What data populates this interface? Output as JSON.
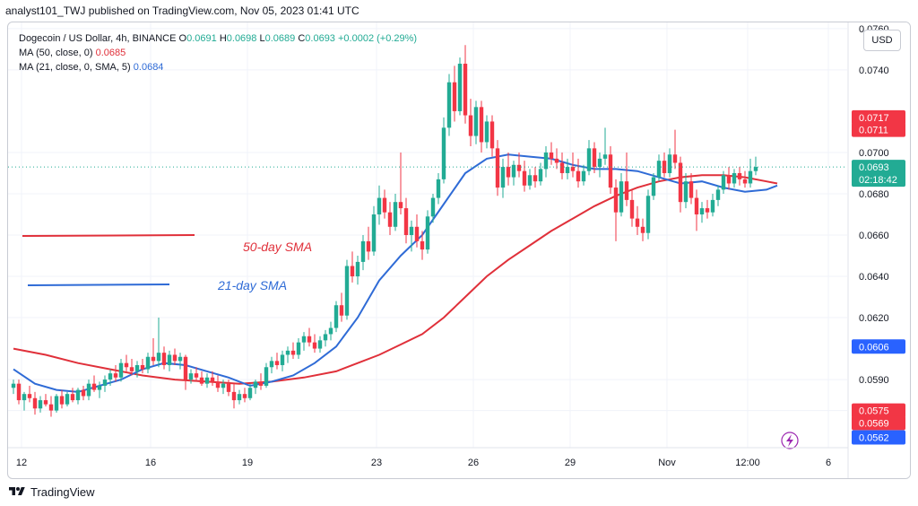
{
  "header": {
    "text": "analyst101_TWJ published on TradingView.com, Nov 05, 2023 01:41 UTC"
  },
  "legend": {
    "symbol": "Dogecoin / US Dollar, 4h, BINANCE",
    "o_label": "O",
    "o_value": "0.0691",
    "h_label": "H",
    "h_value": "0.0698",
    "l_label": "L",
    "l_value": "0.0689",
    "c_label": "C",
    "c_value": "0.0693",
    "change": "+0.0002 (+0.29%)",
    "ma50_label": "MA (50, close, 0)",
    "ma50_value": "0.0685",
    "ma21_label": "MA (21, close, 0, SMA, 5)",
    "ma21_value": "0.0684"
  },
  "currency_button": "USD",
  "footer": {
    "brand": "TradingView"
  },
  "colors": {
    "up": "#22ab94",
    "down": "#f23645",
    "ma50": "#e0303a",
    "ma21": "#2f6bd6",
    "price_line": "#22ab94"
  },
  "chart_data": {
    "type": "candlestick",
    "title": "Dogecoin / US Dollar, 4h, BINANCE",
    "ylim": [
      0.0557,
      0.0763
    ],
    "y_ticks": [
      {
        "v": 0.076,
        "t": "0.0760"
      },
      {
        "v": 0.074,
        "t": "0.0740"
      },
      {
        "v": 0.07,
        "t": "0.0700"
      },
      {
        "v": 0.068,
        "t": "0.0680"
      },
      {
        "v": 0.066,
        "t": "0.0660"
      },
      {
        "v": 0.064,
        "t": "0.0640"
      },
      {
        "v": 0.062,
        "t": "0.0620"
      },
      {
        "v": 0.059,
        "t": "0.0590"
      },
      {
        "v": 0.0575,
        "t": "0.0575"
      }
    ],
    "x_ticks": [
      {
        "i": 1.5,
        "t": "12"
      },
      {
        "i": 25.5,
        "t": "16"
      },
      {
        "i": 43.5,
        "t": "19"
      },
      {
        "i": 67.5,
        "t": "23"
      },
      {
        "i": 85.5,
        "t": "26"
      },
      {
        "i": 103.5,
        "t": "29"
      },
      {
        "i": 121.5,
        "t": "Nov"
      },
      {
        "i": 136.5,
        "t": "12:00"
      },
      {
        "i": 151.5,
        "t": "6"
      }
    ],
    "price_labels": [
      {
        "v": 0.0717,
        "t": "0.0717",
        "color": "#f23645"
      },
      {
        "v": 0.0711,
        "t": "0.0711",
        "color": "#f23645"
      },
      {
        "v": 0.0606,
        "t": "0.0606",
        "color": "#2962ff"
      },
      {
        "v": 0.0575,
        "t": "0.0575",
        "color": "#f23645"
      },
      {
        "v": 0.0569,
        "t": "0.0569",
        "color": "#f23645"
      },
      {
        "v": 0.0562,
        "t": "0.0562",
        "color": "#2962ff"
      }
    ],
    "current_price": {
      "v": 0.0693,
      "t": "0.0693",
      "countdown": "02:18:42"
    },
    "annotations": [
      {
        "text": "50-day SMA",
        "color": "#e0303a"
      },
      {
        "text": "21-day SMA",
        "color": "#2f6bd6"
      }
    ],
    "ohlc": [
      [
        0.0586,
        0.059,
        0.0583,
        0.0588
      ],
      [
        0.0588,
        0.059,
        0.0578,
        0.058
      ],
      [
        0.058,
        0.0584,
        0.0575,
        0.0583
      ],
      [
        0.0583,
        0.0587,
        0.0579,
        0.0581
      ],
      [
        0.0581,
        0.0584,
        0.0573,
        0.0576
      ],
      [
        0.0576,
        0.0582,
        0.0574,
        0.058
      ],
      [
        0.058,
        0.0583,
        0.0577,
        0.0578
      ],
      [
        0.0578,
        0.0582,
        0.0572,
        0.0575
      ],
      [
        0.0575,
        0.0583,
        0.0574,
        0.0582
      ],
      [
        0.0582,
        0.0585,
        0.0576,
        0.0578
      ],
      [
        0.0578,
        0.0584,
        0.0577,
        0.0583
      ],
      [
        0.0583,
        0.0586,
        0.0579,
        0.058
      ],
      [
        0.058,
        0.0586,
        0.0578,
        0.0585
      ],
      [
        0.0585,
        0.0587,
        0.058,
        0.0582
      ],
      [
        0.0582,
        0.059,
        0.058,
        0.0588
      ],
      [
        0.0588,
        0.0592,
        0.0584,
        0.0585
      ],
      [
        0.0585,
        0.0589,
        0.0581,
        0.0587
      ],
      [
        0.0587,
        0.0592,
        0.0584,
        0.059
      ],
      [
        0.059,
        0.0595,
        0.0587,
        0.0593
      ],
      [
        0.0593,
        0.0597,
        0.0589,
        0.0591
      ],
      [
        0.0591,
        0.06,
        0.0589,
        0.0598
      ],
      [
        0.0598,
        0.0602,
        0.0594,
        0.0596
      ],
      [
        0.0596,
        0.06,
        0.0592,
        0.0594
      ],
      [
        0.0594,
        0.0599,
        0.0591,
        0.0597
      ],
      [
        0.0597,
        0.06,
        0.0593,
        0.0595
      ],
      [
        0.0595,
        0.0603,
        0.0593,
        0.0601
      ],
      [
        0.0601,
        0.061,
        0.0597,
        0.0599
      ],
      [
        0.0599,
        0.062,
        0.0596,
        0.0603
      ],
      [
        0.0603,
        0.0606,
        0.0595,
        0.0597
      ],
      [
        0.0597,
        0.0604,
        0.0594,
        0.0602
      ],
      [
        0.0602,
        0.0605,
        0.0597,
        0.0599
      ],
      [
        0.0599,
        0.0603,
        0.0595,
        0.0601
      ],
      [
        0.0601,
        0.0602,
        0.0585,
        0.059
      ],
      [
        0.059,
        0.0595,
        0.0588,
        0.0593
      ],
      [
        0.0593,
        0.0596,
        0.0589,
        0.0591
      ],
      [
        0.0591,
        0.0594,
        0.0587,
        0.0588
      ],
      [
        0.0588,
        0.0593,
        0.0586,
        0.0591
      ],
      [
        0.0591,
        0.0594,
        0.0587,
        0.0589
      ],
      [
        0.0589,
        0.0592,
        0.0584,
        0.0586
      ],
      [
        0.0586,
        0.059,
        0.0583,
        0.0588
      ],
      [
        0.0588,
        0.059,
        0.0582,
        0.0584
      ],
      [
        0.0584,
        0.0588,
        0.0576,
        0.058
      ],
      [
        0.058,
        0.0585,
        0.0578,
        0.0583
      ],
      [
        0.0583,
        0.0586,
        0.0579,
        0.0581
      ],
      [
        0.0581,
        0.0588,
        0.058,
        0.0586
      ],
      [
        0.0586,
        0.059,
        0.0583,
        0.0589
      ],
      [
        0.0589,
        0.0593,
        0.0585,
        0.0587
      ],
      [
        0.0587,
        0.0598,
        0.0586,
        0.0596
      ],
      [
        0.0596,
        0.0601,
        0.0593,
        0.0599
      ],
      [
        0.0599,
        0.0603,
        0.0595,
        0.0597
      ],
      [
        0.0597,
        0.0604,
        0.0594,
        0.0602
      ],
      [
        0.0602,
        0.0606,
        0.0598,
        0.0604
      ],
      [
        0.0604,
        0.0608,
        0.06,
        0.0602
      ],
      [
        0.0602,
        0.061,
        0.06,
        0.0608
      ],
      [
        0.0608,
        0.0613,
        0.0604,
        0.0611
      ],
      [
        0.0611,
        0.0615,
        0.0606,
        0.0608
      ],
      [
        0.0608,
        0.0612,
        0.0603,
        0.0605
      ],
      [
        0.0605,
        0.0611,
        0.0603,
        0.0609
      ],
      [
        0.0609,
        0.0614,
        0.0606,
        0.0612
      ],
      [
        0.0612,
        0.0618,
        0.0609,
        0.0615
      ],
      [
        0.0615,
        0.0628,
        0.0613,
        0.0626
      ],
      [
        0.0626,
        0.0632,
        0.0618,
        0.0621
      ],
      [
        0.0621,
        0.0648,
        0.0619,
        0.0645
      ],
      [
        0.0645,
        0.0652,
        0.0637,
        0.064
      ],
      [
        0.064,
        0.065,
        0.0636,
        0.0647
      ],
      [
        0.0647,
        0.066,
        0.0643,
        0.0657
      ],
      [
        0.0657,
        0.0664,
        0.0648,
        0.0652
      ],
      [
        0.0652,
        0.0674,
        0.065,
        0.067
      ],
      [
        0.067,
        0.0684,
        0.0665,
        0.0678
      ],
      [
        0.0678,
        0.0682,
        0.0668,
        0.0671
      ],
      [
        0.0671,
        0.0676,
        0.066,
        0.0664
      ],
      [
        0.0664,
        0.068,
        0.0662,
        0.0676
      ],
      [
        0.0676,
        0.07,
        0.067,
        0.0673
      ],
      [
        0.0673,
        0.0678,
        0.0656,
        0.066
      ],
      [
        0.066,
        0.0667,
        0.0652,
        0.0664
      ],
      [
        0.0664,
        0.067,
        0.0654,
        0.0657
      ],
      [
        0.0657,
        0.0662,
        0.0648,
        0.0653
      ],
      [
        0.0653,
        0.0672,
        0.0651,
        0.0669
      ],
      [
        0.0669,
        0.068,
        0.0666,
        0.0678
      ],
      [
        0.0678,
        0.069,
        0.0675,
        0.0687
      ],
      [
        0.0687,
        0.0717,
        0.0685,
        0.0712
      ],
      [
        0.0712,
        0.0738,
        0.0708,
        0.0734
      ],
      [
        0.0734,
        0.0742,
        0.0715,
        0.072
      ],
      [
        0.072,
        0.0746,
        0.0718,
        0.0743
      ],
      [
        0.0743,
        0.0752,
        0.0714,
        0.0718
      ],
      [
        0.0718,
        0.0726,
        0.0703,
        0.0708
      ],
      [
        0.0708,
        0.0725,
        0.0704,
        0.0722
      ],
      [
        0.0722,
        0.0725,
        0.07,
        0.0705
      ],
      [
        0.0705,
        0.0718,
        0.0702,
        0.0715
      ],
      [
        0.0715,
        0.0718,
        0.0698,
        0.0702
      ],
      [
        0.0702,
        0.0706,
        0.0679,
        0.0683
      ],
      [
        0.0683,
        0.0697,
        0.0678,
        0.0693
      ],
      [
        0.0693,
        0.07,
        0.0684,
        0.0688
      ],
      [
        0.0688,
        0.0696,
        0.0684,
        0.0694
      ],
      [
        0.0694,
        0.07,
        0.0688,
        0.0691
      ],
      [
        0.0691,
        0.0696,
        0.0681,
        0.0684
      ],
      [
        0.0684,
        0.0692,
        0.0682,
        0.0689
      ],
      [
        0.0689,
        0.0693,
        0.0683,
        0.0686
      ],
      [
        0.0686,
        0.0695,
        0.0684,
        0.0692
      ],
      [
        0.0692,
        0.0703,
        0.0688,
        0.07
      ],
      [
        0.07,
        0.0705,
        0.0694,
        0.0697
      ],
      [
        0.0697,
        0.0702,
        0.0692,
        0.0695
      ],
      [
        0.0695,
        0.07,
        0.0687,
        0.069
      ],
      [
        0.069,
        0.0697,
        0.0687,
        0.0693
      ],
      [
        0.0693,
        0.07,
        0.0688,
        0.0691
      ],
      [
        0.0691,
        0.0697,
        0.0683,
        0.0686
      ],
      [
        0.0686,
        0.0694,
        0.0684,
        0.0691
      ],
      [
        0.0691,
        0.0706,
        0.0689,
        0.0702
      ],
      [
        0.0702,
        0.0705,
        0.069,
        0.0693
      ],
      [
        0.0693,
        0.07,
        0.0688,
        0.0697
      ],
      [
        0.0697,
        0.0712,
        0.0694,
        0.0699
      ],
      [
        0.0699,
        0.0703,
        0.068,
        0.0683
      ],
      [
        0.0683,
        0.0687,
        0.0657,
        0.0671
      ],
      [
        0.0671,
        0.069,
        0.0669,
        0.0686
      ],
      [
        0.0686,
        0.07,
        0.0674,
        0.0677
      ],
      [
        0.0677,
        0.0682,
        0.0664,
        0.0668
      ],
      [
        0.0668,
        0.0674,
        0.066,
        0.0664
      ],
      [
        0.0664,
        0.0668,
        0.0657,
        0.0661
      ],
      [
        0.0661,
        0.0682,
        0.0658,
        0.0679
      ],
      [
        0.0679,
        0.069,
        0.0677,
        0.0688
      ],
      [
        0.0688,
        0.0699,
        0.0686,
        0.0696
      ],
      [
        0.0696,
        0.07,
        0.0688,
        0.069
      ],
      [
        0.069,
        0.0702,
        0.0688,
        0.0699
      ],
      [
        0.0699,
        0.0711,
        0.0692,
        0.0695
      ],
      [
        0.0695,
        0.0698,
        0.0671,
        0.0676
      ],
      [
        0.0676,
        0.069,
        0.0673,
        0.0686
      ],
      [
        0.0686,
        0.069,
        0.0675,
        0.0678
      ],
      [
        0.0678,
        0.0682,
        0.0662,
        0.067
      ],
      [
        0.067,
        0.0676,
        0.0666,
        0.0673
      ],
      [
        0.0673,
        0.0677,
        0.0668,
        0.0671
      ],
      [
        0.0671,
        0.068,
        0.0669,
        0.0677
      ],
      [
        0.0677,
        0.0684,
        0.0674,
        0.0682
      ],
      [
        0.0682,
        0.0691,
        0.068,
        0.0689
      ],
      [
        0.0689,
        0.0693,
        0.0682,
        0.0685
      ],
      [
        0.0685,
        0.0692,
        0.0683,
        0.069
      ],
      [
        0.069,
        0.0693,
        0.0684,
        0.0687
      ],
      [
        0.0687,
        0.0691,
        0.0683,
        0.0685
      ],
      [
        0.0685,
        0.0697,
        0.0683,
        0.0691
      ],
      [
        0.0691,
        0.0698,
        0.0689,
        0.0693
      ]
    ],
    "ma21": [
      [
        0,
        0.0595
      ],
      [
        4,
        0.0588
      ],
      [
        8,
        0.0585
      ],
      [
        12,
        0.0584
      ],
      [
        16,
        0.0587
      ],
      [
        20,
        0.059
      ],
      [
        24,
        0.0595
      ],
      [
        28,
        0.0598
      ],
      [
        32,
        0.0597
      ],
      [
        36,
        0.0594
      ],
      [
        40,
        0.0591
      ],
      [
        44,
        0.0587
      ],
      [
        48,
        0.0589
      ],
      [
        52,
        0.0592
      ],
      [
        56,
        0.0598
      ],
      [
        60,
        0.0606
      ],
      [
        64,
        0.062
      ],
      [
        68,
        0.0638
      ],
      [
        72,
        0.065
      ],
      [
        76,
        0.066
      ],
      [
        80,
        0.0675
      ],
      [
        84,
        0.069
      ],
      [
        88,
        0.0697
      ],
      [
        92,
        0.0699
      ],
      [
        96,
        0.0698
      ],
      [
        100,
        0.0697
      ],
      [
        104,
        0.0694
      ],
      [
        108,
        0.0692
      ],
      [
        112,
        0.0692
      ],
      [
        116,
        0.0691
      ],
      [
        120,
        0.0688
      ],
      [
        124,
        0.0685
      ],
      [
        128,
        0.0686
      ],
      [
        132,
        0.0683
      ],
      [
        136,
        0.0681
      ],
      [
        140,
        0.0682
      ],
      [
        142,
        0.0684
      ]
    ],
    "ma50": [
      [
        0,
        0.0605
      ],
      [
        6,
        0.0602
      ],
      [
        12,
        0.0598
      ],
      [
        18,
        0.0595
      ],
      [
        24,
        0.0592
      ],
      [
        30,
        0.059
      ],
      [
        36,
        0.0589
      ],
      [
        42,
        0.0588
      ],
      [
        48,
        0.0589
      ],
      [
        54,
        0.0591
      ],
      [
        60,
        0.0594
      ],
      [
        64,
        0.0598
      ],
      [
        68,
        0.0602
      ],
      [
        72,
        0.0607
      ],
      [
        76,
        0.0612
      ],
      [
        80,
        0.062
      ],
      [
        84,
        0.063
      ],
      [
        88,
        0.064
      ],
      [
        92,
        0.0648
      ],
      [
        96,
        0.0655
      ],
      [
        100,
        0.0662
      ],
      [
        104,
        0.0668
      ],
      [
        108,
        0.0674
      ],
      [
        112,
        0.0679
      ],
      [
        116,
        0.0683
      ],
      [
        120,
        0.0686
      ],
      [
        124,
        0.0688
      ],
      [
        128,
        0.0689
      ],
      [
        132,
        0.0689
      ],
      [
        136,
        0.0688
      ],
      [
        140,
        0.0686
      ],
      [
        142,
        0.0685
      ]
    ]
  }
}
